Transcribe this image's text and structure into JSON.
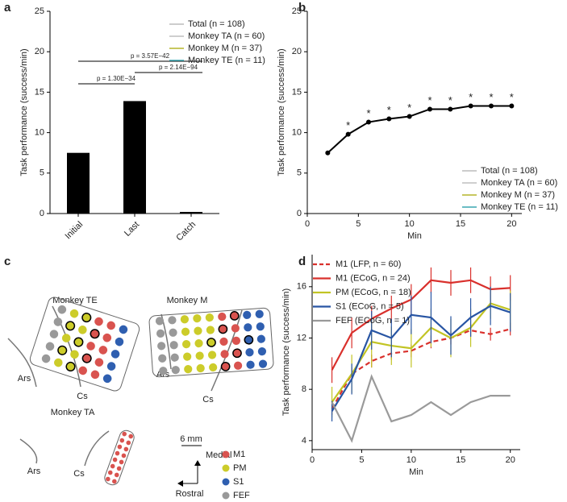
{
  "chart_data": [
    {
      "panel": "a",
      "type": "bar",
      "categories": [
        "Initial",
        "Last",
        "Catch"
      ],
      "values": [
        7.5,
        13.9,
        0.2
      ],
      "color": "#000000",
      "y_label": "Task performance (success/min)",
      "ylim": [
        0,
        25
      ],
      "yticks": [
        0,
        5,
        10,
        15,
        20,
        25
      ],
      "legend": [
        {
          "name": "Total (n = 108)",
          "color": "#bbbbbb"
        },
        {
          "name": "Monkey TA (n = 60)",
          "color": "#bfbfbf"
        },
        {
          "name": "Monkey M (n = 37)",
          "color": "#b5b52a"
        },
        {
          "name": "Monkey TE (n = 11)",
          "color": "#3aa6b0"
        }
      ],
      "legend_position": "upper right",
      "annotations": [
        {
          "text": "p = 1.30E−34",
          "from": 0,
          "to": 1,
          "level": 1
        },
        {
          "text": "p = 3.57E−42",
          "from": 0,
          "to": 2,
          "level": 3
        },
        {
          "text": "p = 2.14E−94",
          "from": 1,
          "to": 2,
          "level": 2
        }
      ]
    },
    {
      "panel": "b",
      "type": "line",
      "x": [
        2,
        4,
        6,
        8,
        10,
        12,
        14,
        16,
        18,
        20
      ],
      "values": [
        7.5,
        9.8,
        11.3,
        11.7,
        12.0,
        12.9,
        12.9,
        13.3,
        13.3,
        13.3
      ],
      "color": "#000000",
      "significance_marker": "*",
      "significant": [
        false,
        true,
        true,
        true,
        true,
        true,
        true,
        true,
        true,
        true
      ],
      "x_label": "Min",
      "y_label": "Task performance (success/min)",
      "xlim": [
        0,
        21
      ],
      "xticks": [
        0,
        5,
        10,
        15,
        20
      ],
      "ylim": [
        0,
        25
      ],
      "yticks": [
        0,
        5,
        10,
        15,
        20,
        25
      ],
      "legend": [
        {
          "name": "Total (n = 108)",
          "color": "#bbbbbb"
        },
        {
          "name": "Monkey TA (n = 60)",
          "color": "#bfbfbf"
        },
        {
          "name": "Monkey M (n = 37)",
          "color": "#b5b52a"
        },
        {
          "name": "Monkey TE (n = 11)",
          "color": "#3aa6b0"
        }
      ],
      "legend_position": "lower right"
    },
    {
      "panel": "d",
      "type": "line",
      "x": [
        2,
        4,
        6,
        8,
        10,
        12,
        14,
        16,
        18,
        20
      ],
      "series": [
        {
          "name": "M1 (LFP, n = 60)",
          "color": "#d9302c",
          "dashed": true,
          "values": [
            6.5,
            9.2,
            10.2,
            10.8,
            11.0,
            11.7,
            12.0,
            12.6,
            12.3,
            12.7
          ],
          "errors": [
            0.5,
            0.5,
            0.5,
            0.5,
            0.5,
            0.5,
            0.5,
            0.5,
            0.5,
            0.5
          ]
        },
        {
          "name": "M1 (ECoG, n = 24)",
          "color": "#d9302c",
          "dashed": false,
          "values": [
            9.5,
            12.4,
            13.5,
            14.3,
            15.0,
            16.5,
            16.3,
            16.5,
            15.8,
            15.9
          ],
          "errors": [
            1.0,
            1.2,
            1.0,
            1.0,
            1.2,
            1.0,
            1.0,
            1.0,
            1.0,
            1.0
          ]
        },
        {
          "name": "PM (ECoG, n = 18)",
          "color": "#c2c424",
          "dashed": false,
          "values": [
            7.0,
            9.2,
            11.7,
            11.4,
            11.2,
            12.8,
            12.0,
            12.8,
            14.7,
            14.2
          ],
          "errors": [
            1.2,
            1.5,
            2.0,
            1.5,
            1.5,
            1.5,
            1.5,
            1.5,
            1.2,
            1.5
          ]
        },
        {
          "name": "S1 (ECoG, n = 5)",
          "color": "#2855a3",
          "dashed": false,
          "values": [
            6.3,
            8.8,
            12.6,
            12.0,
            13.8,
            13.6,
            12.2,
            13.6,
            14.5,
            14.0
          ],
          "errors": [
            0.8,
            1.2,
            1.5,
            1.5,
            1.5,
            2.0,
            1.5,
            1.5,
            1.5,
            1.5
          ]
        },
        {
          "name": "FEF (ECoG, n = 1)",
          "color": "#9a9a9a",
          "dashed": false,
          "values": [
            7.0,
            4.0,
            9.0,
            5.5,
            6.0,
            7.0,
            6.0,
            7.0,
            7.5,
            7.5
          ]
        }
      ],
      "x_label": "Min",
      "y_label": "Task performance (success/min)",
      "xlim": [
        0,
        21
      ],
      "xticks": [
        0,
        5,
        10,
        15,
        20
      ],
      "ylim": [
        3.3,
        18.5
      ],
      "yticks": [
        4,
        8,
        12,
        16
      ],
      "legend_position": "upper left"
    }
  ],
  "diagram": {
    "panel": "c",
    "titles": [
      "Monkey TE",
      "Monkey M",
      "Monkey TA"
    ],
    "region_labels": [
      "Ars",
      "Cs",
      "Ars",
      "Cs",
      "Ars",
      "Cs"
    ],
    "scale_bar": "6 mm",
    "directions": [
      "Medial",
      "Rostral"
    ],
    "legend": [
      {
        "name": "M1",
        "color": "#d9534f"
      },
      {
        "name": "PM",
        "color": "#cccc2a"
      },
      {
        "name": "S1",
        "color": "#2f5fb0"
      },
      {
        "name": "FEF",
        "color": "#999999"
      }
    ]
  }
}
